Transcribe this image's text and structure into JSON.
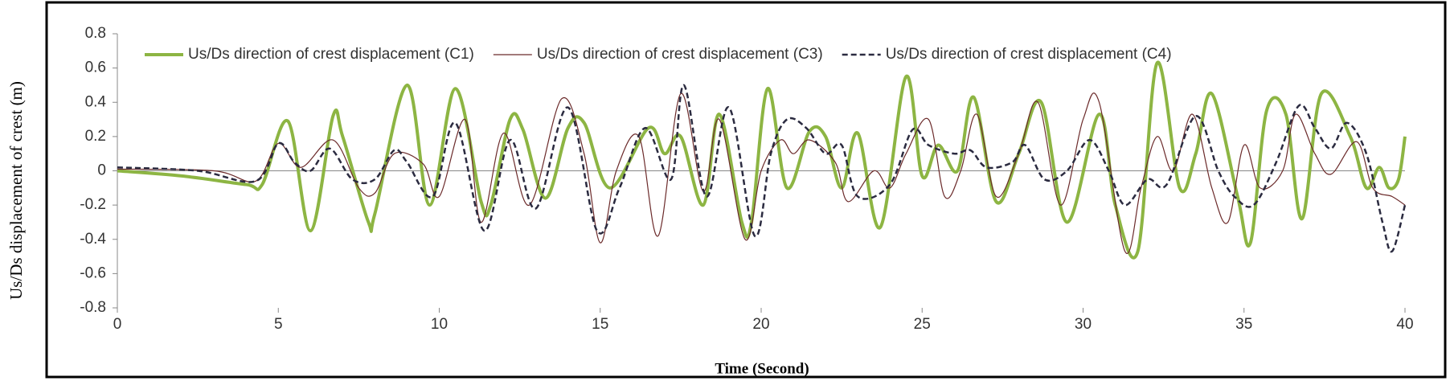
{
  "chart_data": {
    "type": "line",
    "y_label": "Us/Ds displacement of crest (m)",
    "x_label": "Time (Second)",
    "xlim": [
      0,
      40
    ],
    "xticks": [
      0,
      5,
      10,
      15,
      20,
      25,
      30,
      35,
      40
    ],
    "ylim": [
      -0.8,
      0.8
    ],
    "yticks": [
      -0.8,
      -0.6,
      -0.4,
      -0.2,
      0,
      0.2,
      0.4,
      0.6,
      0.8
    ],
    "legend": "top",
    "series": [
      {
        "name": "Us/Ds direction of crest displacement (C1)",
        "color": "#8db543",
        "width": 4,
        "dash": "solid",
        "x": [
          0,
          2,
          4,
          4.5,
          5.3,
          6,
          6.7,
          7,
          7.8,
          8,
          9,
          9.7,
          10.5,
          11.3,
          11.6,
          12.2,
          12.6,
          13.3,
          14,
          14.5,
          15.3,
          16.5,
          17,
          17.5,
          18.2,
          18.7,
          19.4,
          19.7,
          20.2,
          20.8,
          21.5,
          22,
          22.5,
          23,
          23.7,
          24.5,
          25,
          25.5,
          26.1,
          26.6,
          27.3,
          28,
          28.7,
          29.5,
          30.5,
          31,
          31.7,
          32.3,
          33,
          33.5,
          34,
          34.8,
          35.2,
          35.7,
          36.3,
          36.8,
          37.4,
          38.3,
          38.8,
          39.2,
          39.5,
          39.8,
          40
        ],
        "values": [
          0,
          -0.03,
          -0.08,
          -0.08,
          0.29,
          -0.35,
          0.32,
          0.2,
          -0.3,
          -0.25,
          0.5,
          -0.2,
          0.48,
          -0.18,
          -0.2,
          0.3,
          0.24,
          -0.16,
          0.25,
          0.28,
          -0.1,
          0.25,
          0.1,
          0.2,
          -0.2,
          0.33,
          -0.3,
          -0.3,
          0.48,
          -0.1,
          0.23,
          0.2,
          -0.1,
          0.22,
          -0.33,
          0.55,
          -0.03,
          0.15,
          0,
          0.43,
          -0.18,
          0.1,
          0.4,
          -0.3,
          0.33,
          -0.2,
          -0.47,
          0.63,
          -0.1,
          0.1,
          0.45,
          -0.15,
          -0.42,
          0.35,
          0.33,
          -0.28,
          0.45,
          0.2,
          -0.1,
          0.02,
          -0.1,
          -0.05,
          0.2
        ]
      },
      {
        "name": "Us/Ds direction of crest displacement (C3)",
        "color": "#6b2a2a",
        "width": 1.2,
        "dash": "solid",
        "x": [
          0,
          3,
          4.3,
          5,
          5.7,
          6.7,
          7.5,
          8,
          8.6,
          9.5,
          10,
          10.8,
          11.3,
          12,
          12.8,
          13.8,
          14.5,
          15,
          15.5,
          16.2,
          16.8,
          17.5,
          18.2,
          18.7,
          19.5,
          20,
          20.6,
          21,
          21.5,
          22.3,
          22.7,
          23.5,
          24,
          24.5,
          25.2,
          25.7,
          26.2,
          26.7,
          27.3,
          28,
          28.6,
          29.3,
          30,
          30.5,
          31.3,
          31.8,
          32.3,
          32.8,
          33.4,
          34,
          34.5,
          35,
          35.5,
          36.2,
          36.6,
          37.2,
          37.7,
          38.5,
          39,
          39.6,
          40
        ],
        "values": [
          0.01,
          0,
          -0.06,
          0.16,
          0.02,
          0.18,
          -0.1,
          -0.13,
          0.1,
          0.04,
          -0.15,
          0.3,
          -0.3,
          0.22,
          -0.2,
          0.42,
          0.1,
          -0.42,
          0,
          0.2,
          -0.38,
          0.45,
          -0.12,
          0.3,
          -0.4,
          0,
          0.18,
          0.1,
          0.18,
          0.05,
          -0.18,
          0,
          -0.1,
          0.1,
          0.3,
          -0.15,
          0,
          0.33,
          -0.15,
          0.1,
          0.4,
          -0.2,
          0.3,
          0.4,
          -0.47,
          -0.1,
          0.2,
          0,
          0.33,
          -0.1,
          -0.3,
          0.15,
          -0.1,
          0,
          0.33,
          0.1,
          -0.02,
          0.17,
          -0.1,
          -0.15,
          -0.2
        ]
      },
      {
        "name": "Us/Ds direction of crest displacement (C4)",
        "color": "#2b2b40",
        "width": 2.5,
        "dash": "dashed",
        "x": [
          0,
          2.5,
          4.3,
          5,
          5.5,
          6,
          6.6,
          7.3,
          8,
          8.6,
          9,
          9.8,
          10.5,
          11.4,
          12.2,
          13,
          14,
          14.9,
          15.6,
          16.4,
          17.2,
          17.6,
          18.3,
          19,
          19.8,
          20.3,
          20.8,
          21.4,
          22,
          22.5,
          23,
          24,
          24.7,
          25.2,
          26,
          26.5,
          27,
          27.8,
          28.2,
          28.8,
          29.5,
          30.2,
          30.8,
          31.3,
          32,
          32.6,
          33.5,
          34.2,
          34.7,
          35.3,
          36,
          36.7,
          37.2,
          37.7,
          38.2,
          38.8,
          39.3,
          39.6,
          40
        ],
        "values": [
          0.02,
          0,
          -0.06,
          0.16,
          0.05,
          0,
          0.13,
          -0.05,
          -0.05,
          0.12,
          0.05,
          -0.15,
          0.28,
          -0.35,
          0.18,
          -0.22,
          0.37,
          -0.35,
          -0.1,
          0.25,
          -0.05,
          0.5,
          -0.15,
          0.37,
          -0.38,
          0.1,
          0.3,
          0.25,
          0.1,
          0.15,
          -0.15,
          -0.08,
          0.24,
          0.15,
          0.1,
          0.12,
          0.02,
          0.05,
          0.15,
          -0.05,
          0,
          0.18,
          0,
          -0.2,
          -0.05,
          -0.08,
          0.32,
          0,
          -0.15,
          -0.2,
          0.05,
          0.38,
          0.25,
          0.13,
          0.28,
          0.1,
          -0.3,
          -0.47,
          -0.2
        ]
      }
    ]
  }
}
